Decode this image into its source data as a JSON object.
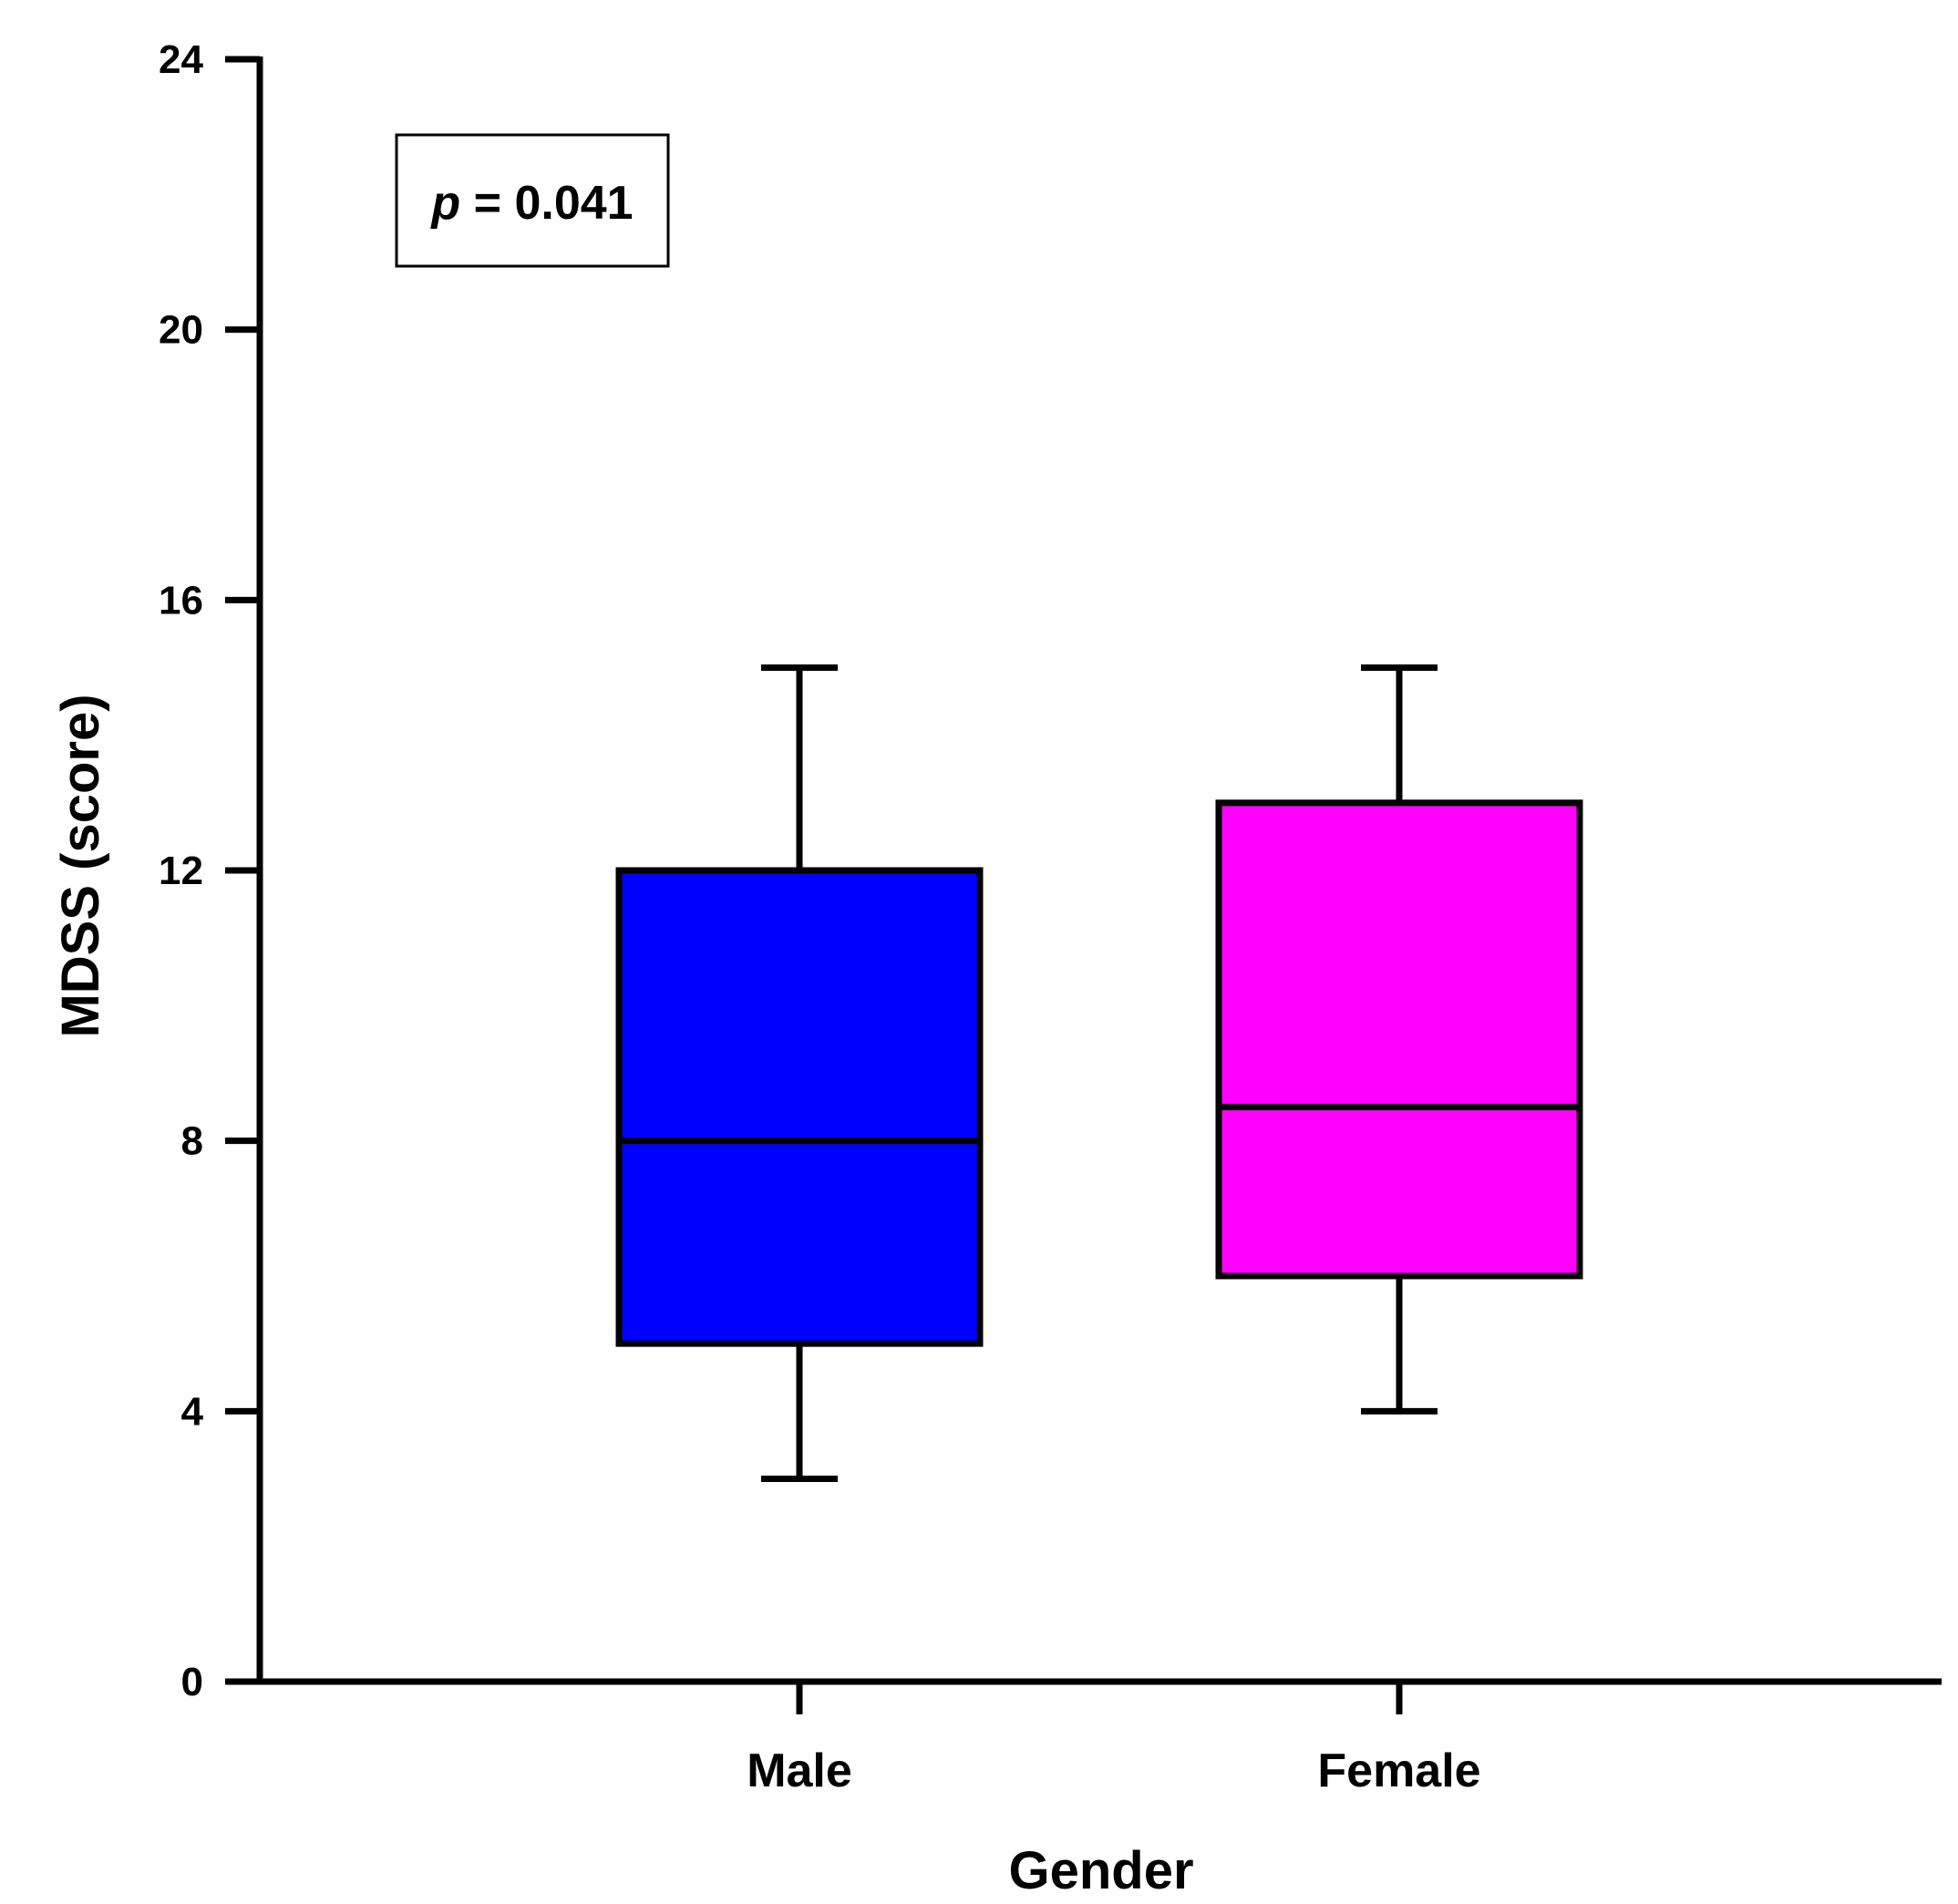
{
  "chart_data": {
    "type": "box",
    "title": "",
    "xlabel": "Gender",
    "ylabel": "MDSS (score)",
    "ylim": [
      0,
      24
    ],
    "yticks": [
      0,
      4,
      8,
      12,
      16,
      20,
      24
    ],
    "grid": false,
    "categories": [
      "Male",
      "Female"
    ],
    "boxes": [
      {
        "category": "Male",
        "min": 3,
        "q1": 5,
        "median": 8,
        "q3": 12,
        "max": 15,
        "color": "#0000FF"
      },
      {
        "category": "Female",
        "min": 4,
        "q1": 6,
        "median": 8.5,
        "q3": 13,
        "max": 15,
        "color": "#FF00FF"
      }
    ],
    "annotation": {
      "italic_part": "p",
      "rest": " = 0.041"
    }
  }
}
